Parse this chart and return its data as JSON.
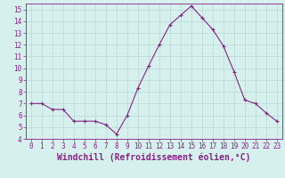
{
  "x": [
    0,
    1,
    2,
    3,
    4,
    5,
    6,
    7,
    8,
    9,
    10,
    11,
    12,
    13,
    14,
    15,
    16,
    17,
    18,
    19,
    20,
    21,
    22,
    23
  ],
  "y": [
    7.0,
    7.0,
    6.5,
    6.5,
    5.5,
    5.5,
    5.5,
    5.2,
    4.4,
    6.0,
    8.3,
    10.2,
    12.0,
    13.7,
    14.5,
    15.3,
    14.3,
    13.3,
    11.9,
    9.7,
    7.3,
    7.0,
    6.2,
    5.5
  ],
  "line_color": "#882288",
  "marker": "+",
  "marker_size": 3,
  "xlim": [
    -0.5,
    23.5
  ],
  "ylim": [
    4,
    15.5
  ],
  "yticks": [
    4,
    5,
    6,
    7,
    8,
    9,
    10,
    11,
    12,
    13,
    14,
    15
  ],
  "xticks": [
    0,
    1,
    2,
    3,
    4,
    5,
    6,
    7,
    8,
    9,
    10,
    11,
    12,
    13,
    14,
    15,
    16,
    17,
    18,
    19,
    20,
    21,
    22,
    23
  ],
  "xlabel": "Windchill (Refroidissement éolien,°C)",
  "background_color": "#d6f0ee",
  "grid_color": "#aed4d0",
  "tick_color": "#882288",
  "label_color": "#882288",
  "tick_fontsize": 5.5,
  "xlabel_fontsize": 7.0
}
